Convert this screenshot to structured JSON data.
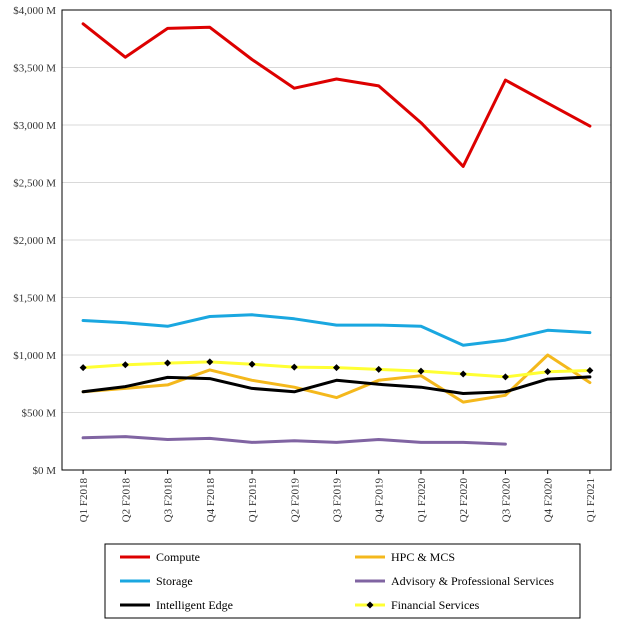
{
  "chart_data": {
    "type": "line",
    "categories": [
      "Q1 F2018",
      "Q2 F2018",
      "Q3 F2018",
      "Q4 F2018",
      "Q1 F2019",
      "Q2 F2019",
      "Q3 F2019",
      "Q4 F2019",
      "Q1 F2020",
      "Q2 F2020",
      "Q3 F2020",
      "Q4 F2020",
      "Q1 F2021"
    ],
    "ylim": [
      0,
      4000
    ],
    "yticks": [
      {
        "value": 0,
        "label": "$0 M"
      },
      {
        "value": 500,
        "label": "$500 M"
      },
      {
        "value": 1000,
        "label": "$1,000 M"
      },
      {
        "value": 1500,
        "label": "$1,500 M"
      },
      {
        "value": 2000,
        "label": "$2,000 M"
      },
      {
        "value": 2500,
        "label": "$2,500 M"
      },
      {
        "value": 3000,
        "label": "$3,000 M"
      },
      {
        "value": 3500,
        "label": "$3,500 M"
      },
      {
        "value": 4000,
        "label": "$4,000 M"
      }
    ],
    "grid": "horizontal",
    "legend_position": "bottom",
    "series": [
      {
        "name": "Compute",
        "color": "#dd0000",
        "marker": "none",
        "values": [
          3880,
          3590,
          3840,
          3850,
          3570,
          3320,
          3400,
          3340,
          3020,
          2640,
          3390,
          3190,
          2990
        ]
      },
      {
        "name": "HPC & MCS",
        "color": "#f4b81c",
        "marker": "none",
        "values": [
          680,
          710,
          740,
          870,
          780,
          720,
          630,
          780,
          820,
          590,
          650,
          1000,
          760
        ]
      },
      {
        "name": "Storage",
        "color": "#1aa7e0",
        "marker": "none",
        "values": [
          1300,
          1280,
          1250,
          1335,
          1350,
          1315,
          1260,
          1260,
          1250,
          1085,
          1130,
          1215,
          1195
        ]
      },
      {
        "name": "Advisory & Professional Services",
        "color": "#8064a2",
        "marker": "none",
        "values": [
          280,
          290,
          265,
          275,
          240,
          255,
          240,
          265,
          240,
          240,
          225,
          null,
          null
        ]
      },
      {
        "name": "Intelligent Edge",
        "color": "#000000",
        "marker": "none",
        "values": [
          680,
          725,
          805,
          795,
          710,
          680,
          780,
          745,
          720,
          665,
          680,
          790,
          810
        ]
      },
      {
        "name": "Financial Services",
        "color": "#ffff33",
        "marker": "diamond",
        "values": [
          890,
          915,
          930,
          940,
          920,
          895,
          890,
          875,
          860,
          835,
          810,
          855,
          865
        ]
      }
    ]
  }
}
